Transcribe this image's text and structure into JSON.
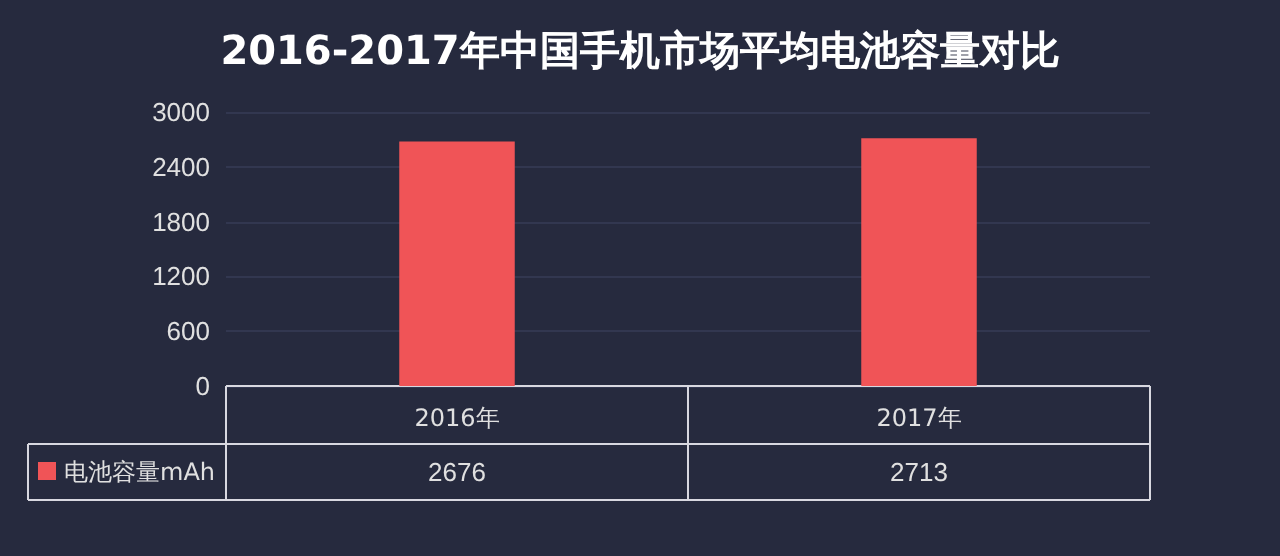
{
  "chart_data": {
    "type": "bar",
    "title": "2016-2017年中国手机市场平均电池容量对比",
    "categories": [
      "2016年",
      "2017年"
    ],
    "series": [
      {
        "name": "电池容量mAh",
        "color": "#f05457",
        "values": [
          2676,
          2713
        ]
      }
    ],
    "ylim": [
      0,
      3000
    ],
    "yticks": [
      0,
      600,
      1200,
      1800,
      2400,
      3000
    ],
    "grid": "y",
    "data_labels": true
  }
}
